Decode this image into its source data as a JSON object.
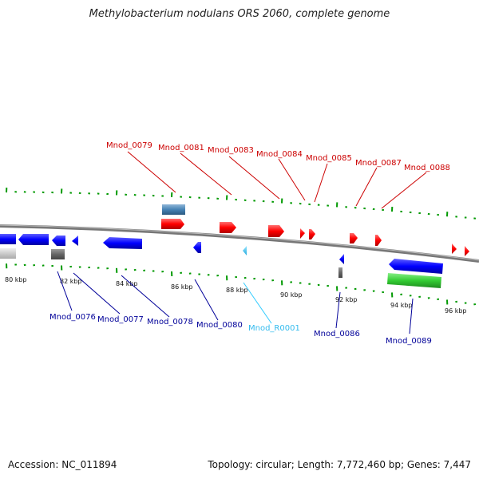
{
  "title": "Methylobacterium nodulans ORS 2060, complete genome",
  "footer": {
    "accession": "Accession: NC_011894",
    "topology": "Topology: circular; Length: 7,772,460 bp; Genes: 7,447"
  },
  "colors": {
    "forward_gene": "#ff0000",
    "reverse_gene": "#0000ff",
    "rna": "#33ccff",
    "forward_label": "#cc0000",
    "reverse_label": "#000099",
    "backbone": "#888888",
    "tick": "#009900",
    "misc_feature": "#4682b4",
    "pseudo": "#666666",
    "other_feature": "#33cc33"
  },
  "scale": {
    "unit": "kbp",
    "tick_labels": [
      "80 kbp",
      "82 kbp",
      "84 kbp",
      "86 kbp",
      "88 kbp",
      "90 kbp",
      "92 kbp",
      "94 kbp",
      "96 kbp"
    ]
  },
  "top_labels": [
    "Mnod_0079",
    "Mnod_0081",
    "Mnod_0083",
    "Mnod_0084",
    "Mnod_0085",
    "Mnod_0087",
    "Mnod_0088"
  ],
  "bottom_labels": [
    "Mnod_0076",
    "Mnod_0077",
    "Mnod_0078",
    "Mnod_0080",
    "Mnod_R0001",
    "Mnod_0086",
    "Mnod_0089"
  ]
}
